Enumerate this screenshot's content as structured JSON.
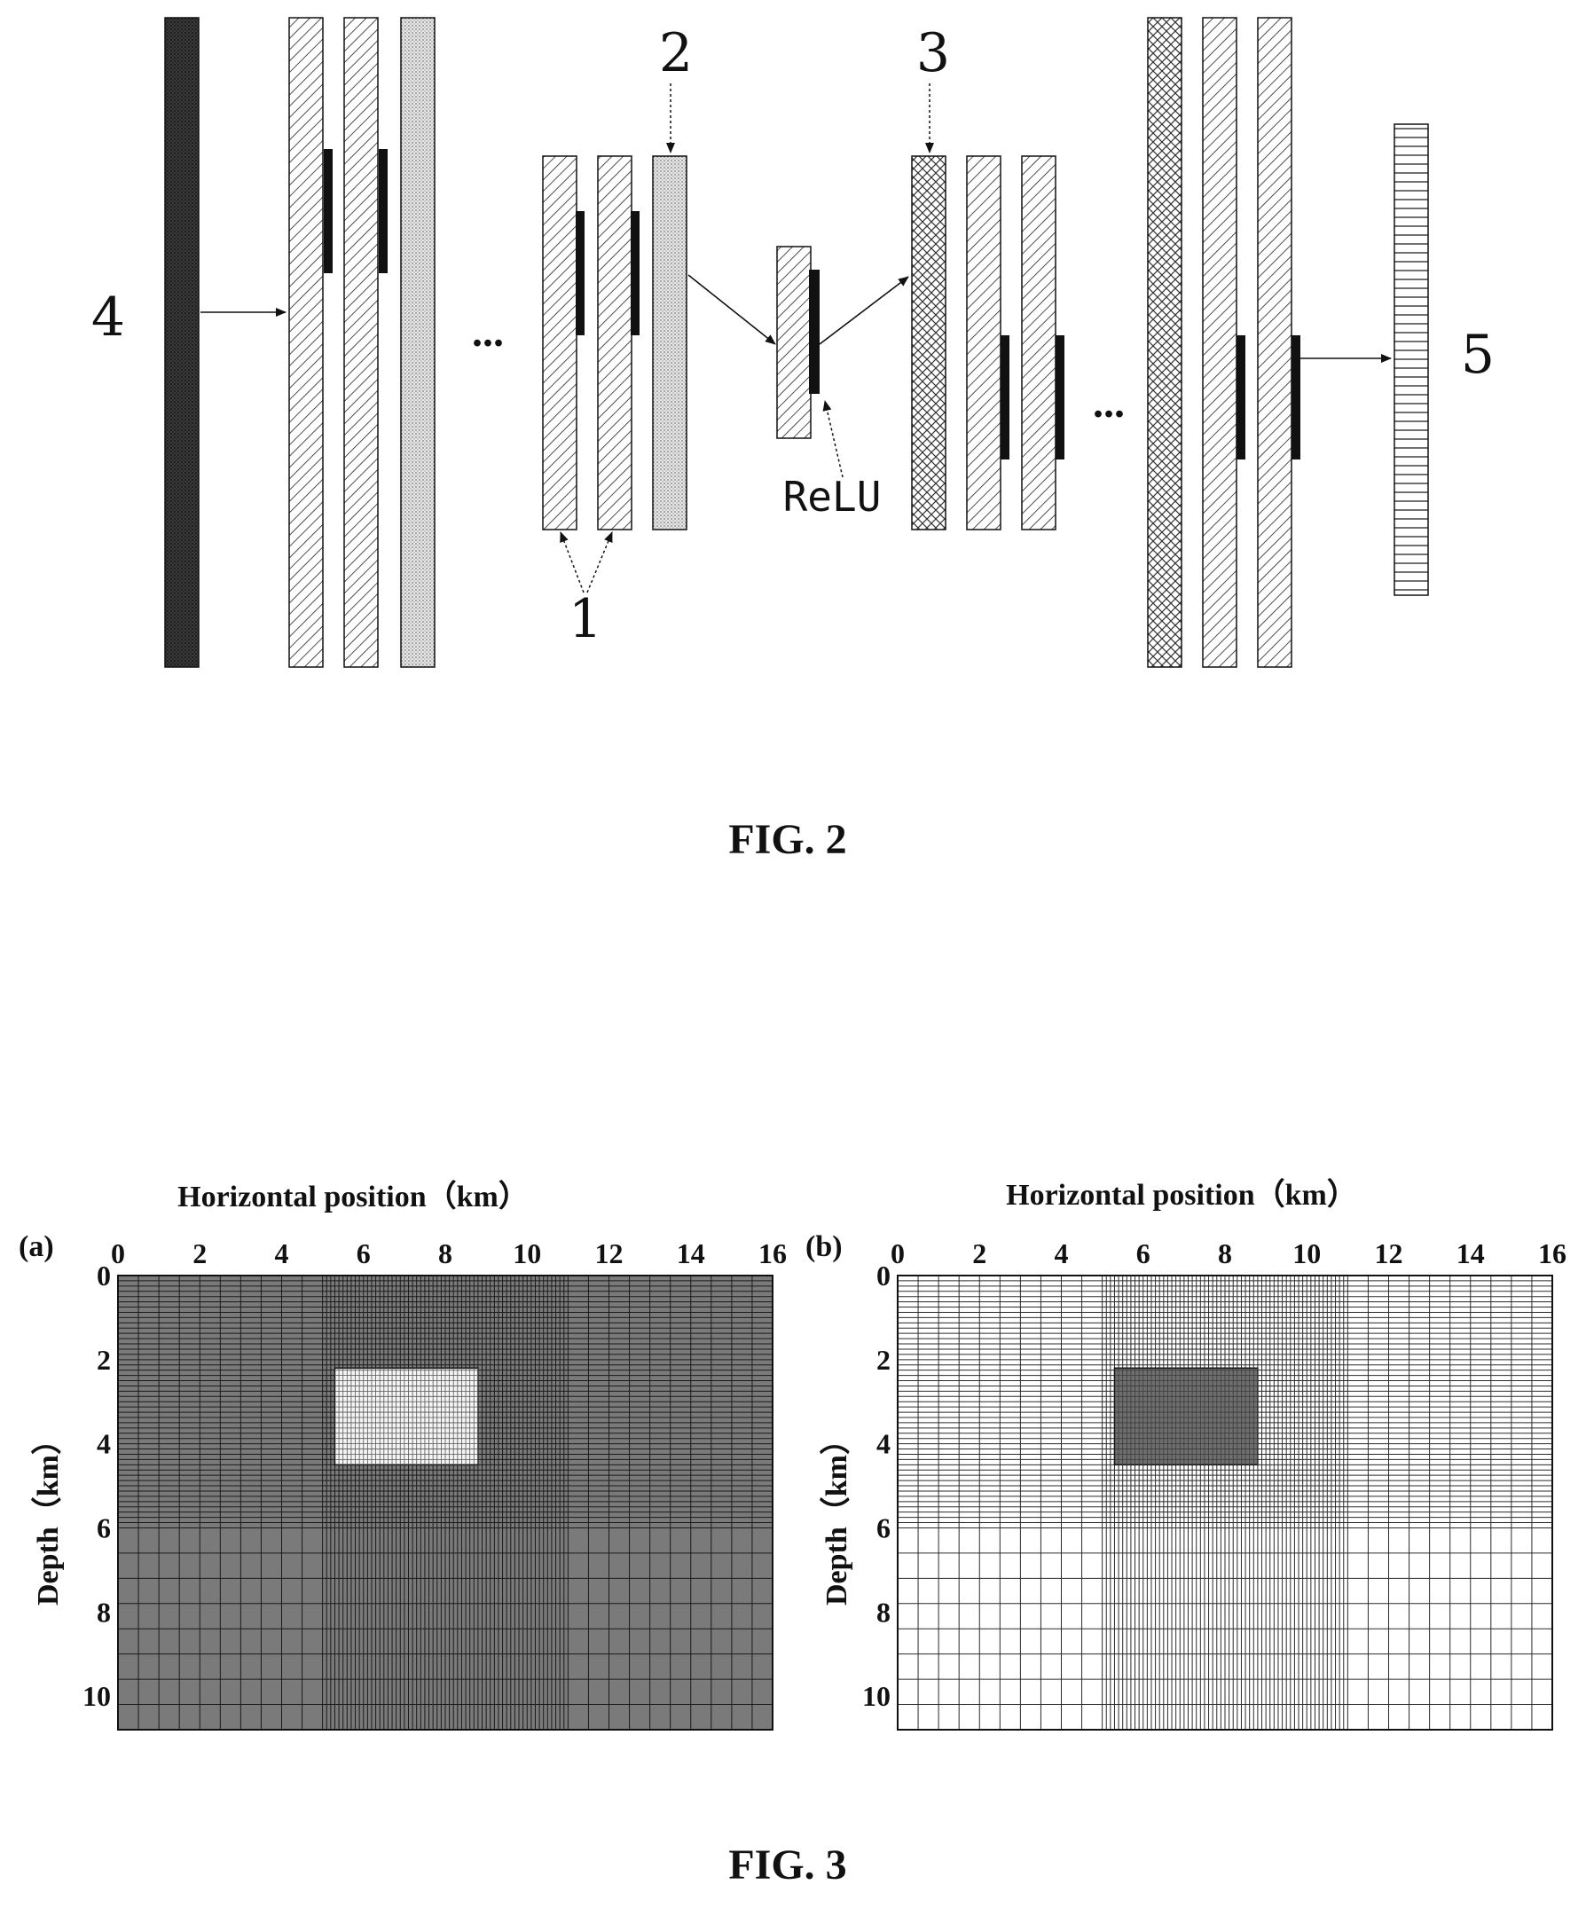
{
  "fig2": {
    "caption": "FIG. 2",
    "labels": {
      "input": "4",
      "output": "5",
      "pool": "2",
      "upsample": "3",
      "conv": "1",
      "relu": "ReLU"
    },
    "ellipsis": "..."
  },
  "fig3": {
    "caption": "FIG. 3",
    "panels": [
      {
        "id": "a",
        "label": "(a)",
        "shading": "dark",
        "background_color": "#7a7a7a",
        "anomaly_color": "#f4f4f4"
      },
      {
        "id": "b",
        "label": "(b)",
        "shading": "light",
        "background_color": "#ffffff",
        "anomaly_color": "#6e6e6e"
      }
    ]
  },
  "chart_data": {
    "type": "heatmap",
    "xlabel": "Horizontal position（km）",
    "ylabel": "Depth（km）",
    "x_ticks": [
      "0",
      "2",
      "4",
      "6",
      "8",
      "10",
      "12",
      "14",
      "16"
    ],
    "y_ticks": [
      "0",
      "2",
      "4",
      "6",
      "8",
      "10"
    ],
    "xlim": [
      0,
      16
    ],
    "ylim": [
      0,
      10.8
    ],
    "x_axis_position": "top",
    "y_axis_inverted": true,
    "grid": true,
    "mesh": {
      "x_fine_range_km": [
        5,
        11
      ],
      "y_fine_range_km": [
        0,
        6
      ]
    },
    "anomaly": {
      "x_range_km": [
        5.3,
        8.8
      ],
      "y_range_km": [
        2.2,
        4.5
      ]
    }
  }
}
